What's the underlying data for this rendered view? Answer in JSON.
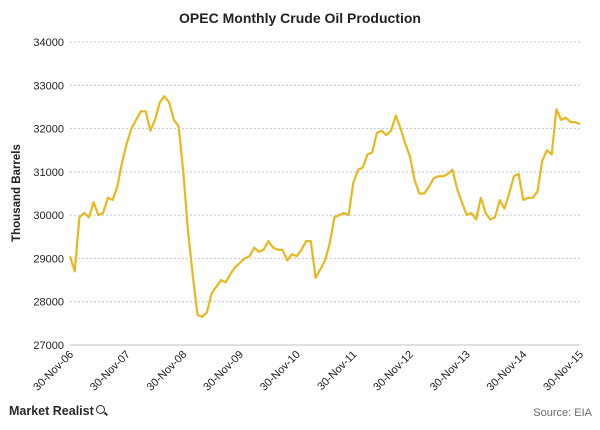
{
  "chart_data": {
    "type": "line",
    "title": "OPEC Monthly Crude Oil Production",
    "ylabel": "Thousand Barrels",
    "xlabel": "",
    "ylim": [
      27000,
      34000
    ],
    "yticks": [
      27000,
      28000,
      29000,
      30000,
      31000,
      32000,
      33000,
      34000
    ],
    "xtick_labels": [
      "30-Nov-06",
      "30-Nov-07",
      "30-Nov-08",
      "30-Nov-09",
      "30-Nov-10",
      "30-Nov-11",
      "30-Nov-12",
      "30-Nov-13",
      "30-Nov-14",
      "30-Nov-15"
    ],
    "grid": "horizontal-dotted",
    "line_color": "#E8B820",
    "series": [
      {
        "name": "",
        "x": [
          "2006-11",
          "2006-12",
          "2007-01",
          "2007-02",
          "2007-03",
          "2007-04",
          "2007-05",
          "2007-06",
          "2007-07",
          "2007-08",
          "2007-09",
          "2007-10",
          "2007-11",
          "2007-12",
          "2008-01",
          "2008-02",
          "2008-03",
          "2008-04",
          "2008-05",
          "2008-06",
          "2008-07",
          "2008-08",
          "2008-09",
          "2008-10",
          "2008-11",
          "2008-12",
          "2009-01",
          "2009-02",
          "2009-03",
          "2009-04",
          "2009-05",
          "2009-06",
          "2009-07",
          "2009-08",
          "2009-09",
          "2009-10",
          "2009-11",
          "2009-12",
          "2010-01",
          "2010-02",
          "2010-03",
          "2010-04",
          "2010-05",
          "2010-06",
          "2010-07",
          "2010-08",
          "2010-09",
          "2010-10",
          "2010-11",
          "2010-12",
          "2011-01",
          "2011-02",
          "2011-03",
          "2011-04",
          "2011-05",
          "2011-06",
          "2011-07",
          "2011-08",
          "2011-09",
          "2011-10",
          "2011-11",
          "2011-12",
          "2012-01",
          "2012-02",
          "2012-03",
          "2012-04",
          "2012-05",
          "2012-06",
          "2012-07",
          "2012-08",
          "2012-09",
          "2012-10",
          "2012-11",
          "2012-12",
          "2013-01",
          "2013-02",
          "2013-03",
          "2013-04",
          "2013-05",
          "2013-06",
          "2013-07",
          "2013-08",
          "2013-09",
          "2013-10",
          "2013-11",
          "2013-12",
          "2014-01",
          "2014-02",
          "2014-03",
          "2014-04",
          "2014-05",
          "2014-06",
          "2014-07",
          "2014-08",
          "2014-09",
          "2014-10",
          "2014-11",
          "2014-12",
          "2015-01",
          "2015-02",
          "2015-03",
          "2015-04",
          "2015-05",
          "2015-06",
          "2015-07",
          "2015-08",
          "2015-09",
          "2015-10",
          "2015-11"
        ],
        "values": [
          29050,
          28700,
          29950,
          30050,
          29950,
          30300,
          30000,
          30050,
          30400,
          30350,
          30650,
          31200,
          31650,
          32000,
          32200,
          32400,
          32400,
          31950,
          32200,
          32600,
          32750,
          32600,
          32200,
          32050,
          31000,
          29600,
          28600,
          27700,
          27650,
          27750,
          28200,
          28350,
          28500,
          28450,
          28650,
          28800,
          28900,
          29000,
          29050,
          29250,
          29150,
          29200,
          29400,
          29250,
          29200,
          29200,
          28950,
          29100,
          29050,
          29200,
          29400,
          29400,
          28550,
          28750,
          28950,
          29350,
          29950,
          30000,
          30050,
          30000,
          30750,
          31050,
          31100,
          31400,
          31450,
          31900,
          31950,
          31850,
          31950,
          32300,
          32000,
          31650,
          31350,
          30800,
          30500,
          30500,
          30650,
          30850,
          30900,
          30900,
          30950,
          31050,
          30600,
          30300,
          30000,
          30050,
          29900,
          30400,
          30050,
          29900,
          29950,
          30350,
          30150,
          30500,
          30900,
          30950,
          30350,
          30400,
          30400,
          30550,
          31250,
          31500,
          31400,
          32450,
          32200,
          32250,
          32150,
          32150,
          32100
        ]
      }
    ]
  },
  "footer": {
    "brand": "Market Realist",
    "source": "Source: EIA"
  }
}
